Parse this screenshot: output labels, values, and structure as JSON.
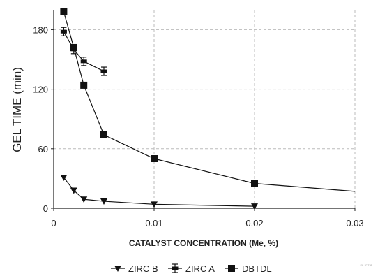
{
  "chart_data": {
    "type": "line",
    "xlabel": "CATALYST CONCENTRATION (Me, %)",
    "ylabel": "GEL TIME (min)",
    "xlim": [
      0,
      0.03
    ],
    "ylim": [
      0,
      200
    ],
    "x_ticks": [
      "0",
      "0.01",
      "0.02",
      "0.03"
    ],
    "y_ticks": [
      "0",
      "60",
      "120",
      "180"
    ],
    "grid": "dashed vertical and horizontal",
    "legend_position": "bottom",
    "series": [
      {
        "name": "ZIRC B",
        "marker": "triangle-down",
        "x": [
          0.001,
          0.002,
          0.003,
          0.005,
          0.01,
          0.02
        ],
        "y": [
          31,
          18,
          9,
          7,
          4,
          2
        ]
      },
      {
        "name": "ZIRC A",
        "marker": "bar-with-errorbars",
        "x": [
          0.001,
          0.002,
          0.003,
          0.005
        ],
        "y": [
          178,
          160,
          148,
          138
        ]
      },
      {
        "name": "DBTDL",
        "marker": "square",
        "x": [
          0.001,
          0.002,
          0.003,
          0.005,
          0.01,
          0.02,
          0.03
        ],
        "y": [
          198,
          162,
          124,
          74,
          50,
          25,
          17
        ]
      }
    ],
    "corner_note": "SL-3273F"
  },
  "colors": {
    "series": "#111111",
    "grid": "#bbbbbb",
    "axis": "#222222"
  }
}
